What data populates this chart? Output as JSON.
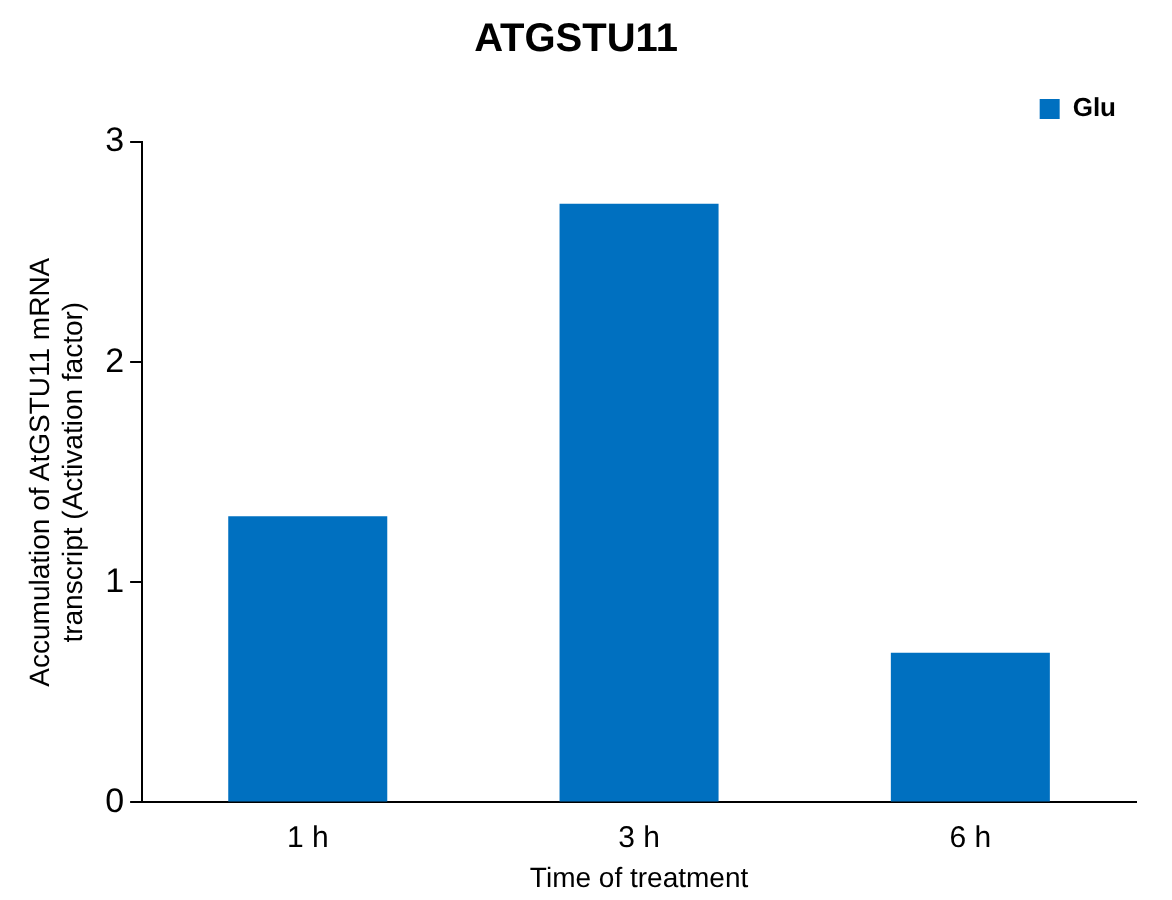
{
  "chart_data": {
    "type": "bar",
    "title": "ATGSTU11",
    "xlabel": "Time of treatment",
    "ylabel": "Accumulation of AtGSTU11 mRNA\ntranscript (Activation factor)",
    "categories": [
      "1 h",
      "3 h",
      "6 h"
    ],
    "series": [
      {
        "name": "Glu",
        "color": "#0070c0",
        "values": [
          1.3,
          2.72,
          0.68
        ]
      }
    ],
    "ylim": [
      0,
      3
    ],
    "yticks": [
      0,
      1,
      2,
      3
    ],
    "grid": false,
    "legend": "top right"
  }
}
